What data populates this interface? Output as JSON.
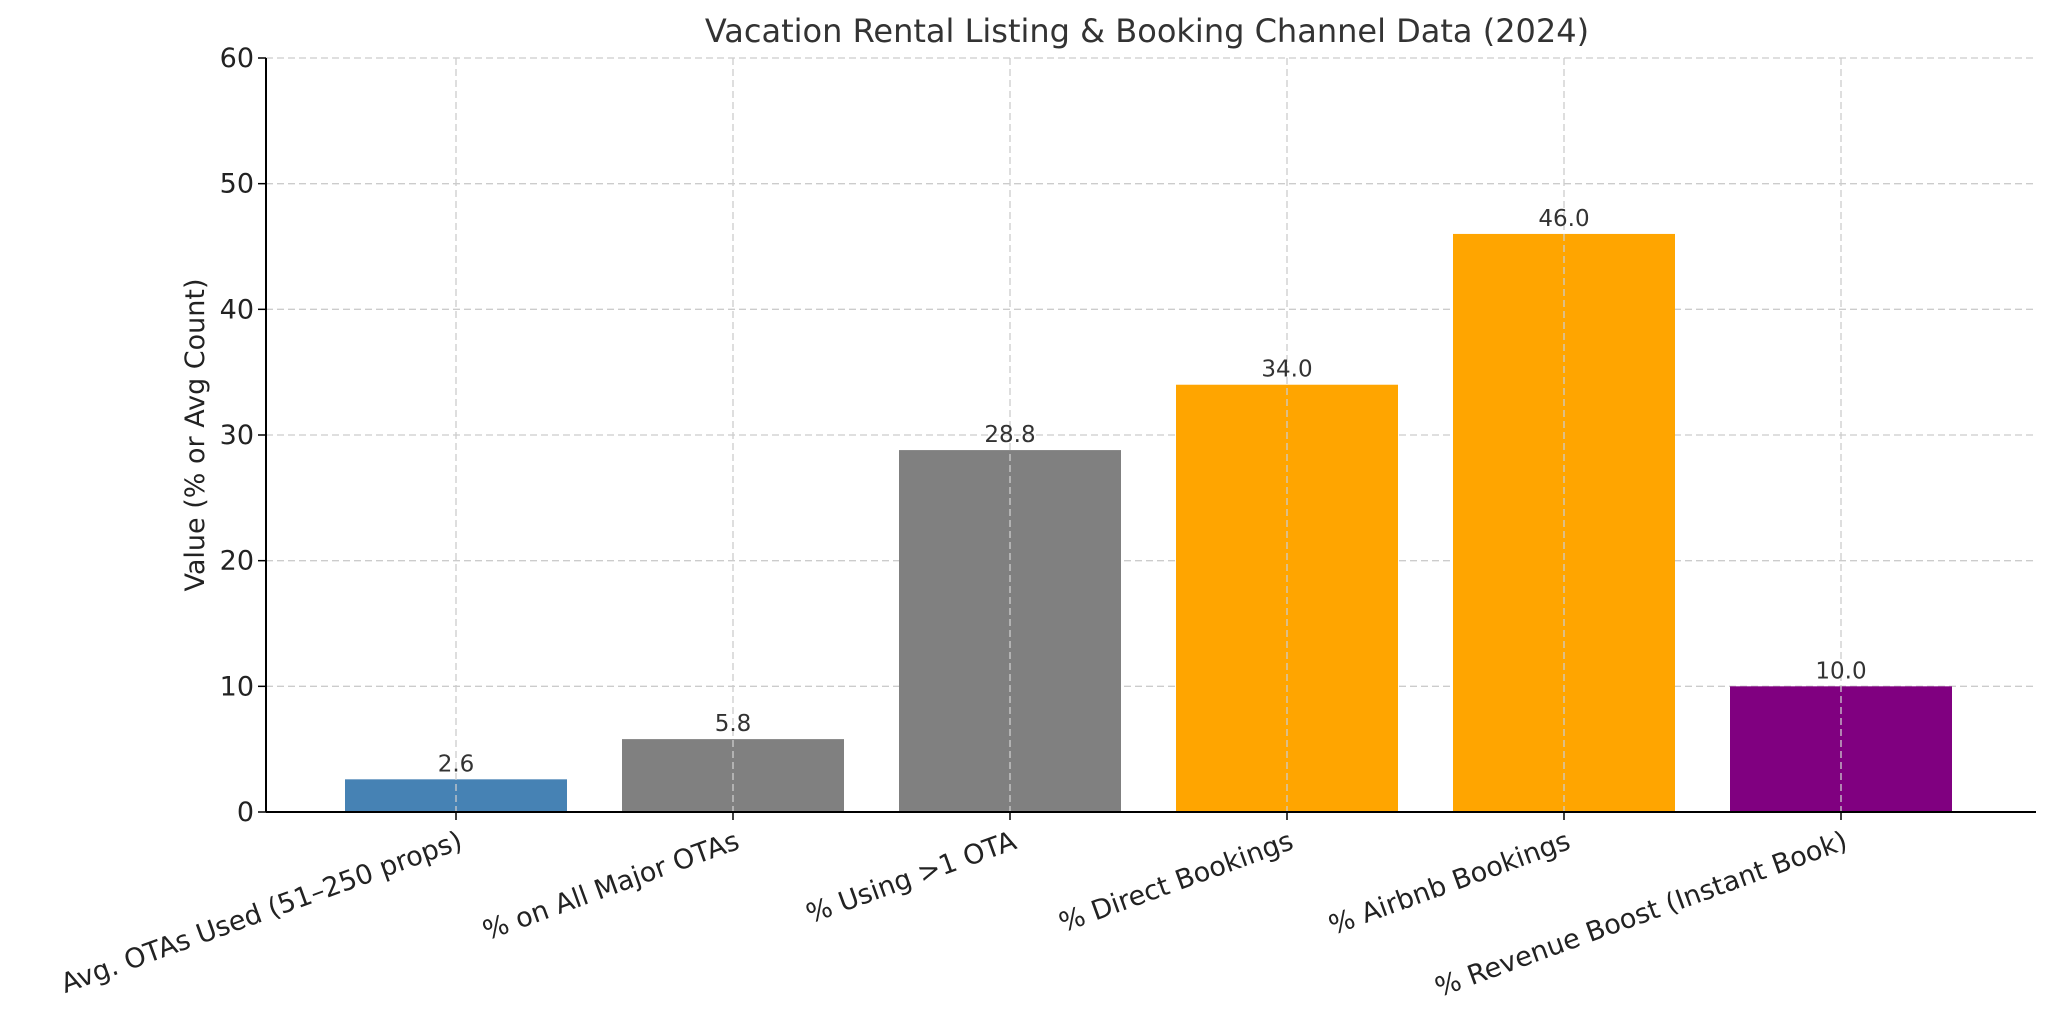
{
  "chart_data": {
    "type": "bar",
    "title": "Vacation Rental Listing & Booking Channel Data (2024)",
    "xlabel": "",
    "ylabel": "Value (% or Avg Count)",
    "ylim": [
      0,
      60
    ],
    "yticks": [
      0,
      10,
      20,
      30,
      40,
      50,
      60
    ],
    "grid": true,
    "categories": [
      "Avg. OTAs Used (51–250 props)",
      "% on All Major OTAs",
      "% Using >1 OTA",
      "% Direct Bookings",
      "% Airbnb Bookings",
      "% Revenue Boost (Instant Book)"
    ],
    "values": [
      2.6,
      5.8,
      28.8,
      34.0,
      46.0,
      10.0
    ],
    "data_labels": [
      "2.6",
      "5.8",
      "28.8",
      "34.0",
      "46.0",
      "10.0"
    ],
    "colors": [
      "#4682b4",
      "#808080",
      "#808080",
      "#ffa500",
      "#ffa500",
      "#800080"
    ]
  }
}
